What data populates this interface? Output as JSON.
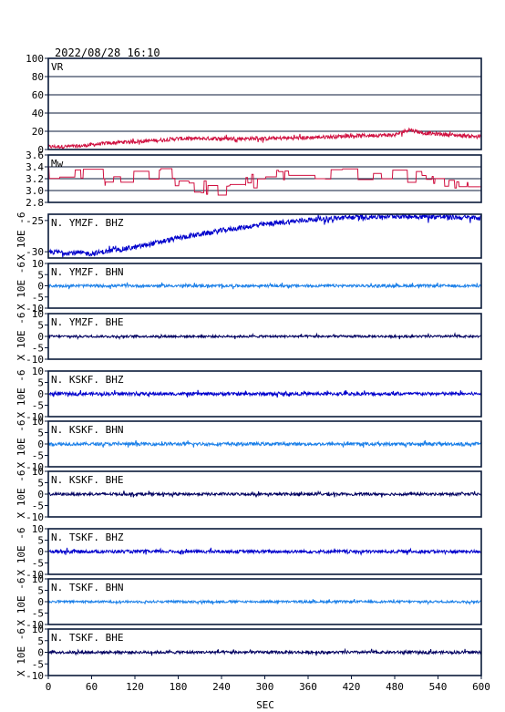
{
  "title": "2022/08/28 16:10",
  "colors": {
    "vr": "#d01040",
    "mw": "#d01040",
    "bhz": "#0000cc",
    "bhn": "#1a7fe8",
    "bhe": "#000060",
    "frame": "#0a1a3a"
  },
  "chart_data": {
    "type": "line",
    "xlabel": "SEC",
    "xlim": [
      0,
      600
    ],
    "xticks": [
      "0",
      "60",
      "120",
      "180",
      "240",
      "300",
      "360",
      "420",
      "480",
      "540",
      "600"
    ],
    "panels": [
      {
        "label": "VR",
        "ylim": [
          0,
          100
        ],
        "yticks": [
          "0",
          "20",
          "40",
          "60",
          "80",
          "100"
        ],
        "grid": true,
        "color_key": "vr",
        "baseline_points": [
          [
            0,
            3
          ],
          [
            40,
            3.5
          ],
          [
            70,
            6
          ],
          [
            100,
            8
          ],
          [
            150,
            10
          ],
          [
            180,
            12
          ],
          [
            240,
            12
          ],
          [
            300,
            12
          ],
          [
            360,
            13
          ],
          [
            420,
            15
          ],
          [
            480,
            16
          ],
          [
            500,
            22
          ],
          [
            520,
            18
          ],
          [
            600,
            14
          ]
        ],
        "noise": 2
      },
      {
        "label": "Mw",
        "ylim": [
          2.8,
          3.6
        ],
        "yticks": [
          "2.8",
          "3.0",
          "3.2",
          "3.4",
          "3.6"
        ],
        "grid": true,
        "color_key": "mw",
        "baseline_points": [
          [
            0,
            3.3
          ],
          [
            40,
            3.35
          ],
          [
            80,
            3.15
          ],
          [
            120,
            3.3
          ],
          [
            160,
            3.25
          ],
          [
            200,
            3.1
          ],
          [
            240,
            2.98
          ],
          [
            280,
            3.15
          ],
          [
            320,
            3.25
          ],
          [
            360,
            3.1
          ],
          [
            400,
            3.3
          ],
          [
            440,
            3.2
          ],
          [
            480,
            3.25
          ],
          [
            520,
            3.2
          ],
          [
            560,
            3.1
          ],
          [
            600,
            3.2
          ]
        ],
        "noise": 0.12,
        "stepped": true
      },
      {
        "label": "N. YMZF. BHZ",
        "ylim": [
          -31,
          -24
        ],
        "yticks": [
          "-30",
          "-25"
        ],
        "ylabel": "X 10E -6",
        "color_key": "bhz",
        "baseline_points": [
          [
            0,
            -30
          ],
          [
            60,
            -30.3
          ],
          [
            120,
            -29.3
          ],
          [
            180,
            -27.8
          ],
          [
            240,
            -26.6
          ],
          [
            300,
            -25.6
          ],
          [
            360,
            -24.9
          ],
          [
            420,
            -24.5
          ],
          [
            480,
            -24.3
          ],
          [
            540,
            -24.4
          ],
          [
            600,
            -24.6
          ]
        ],
        "noise": 0.4
      },
      {
        "label": "N. YMZF. BHN",
        "ylim": [
          -10,
          10
        ],
        "yticks": [
          "-10",
          "-5",
          "0",
          "5",
          "10"
        ],
        "ylabel": "X 10E -6",
        "color_key": "bhn",
        "baseline_points": [
          [
            0,
            0
          ],
          [
            600,
            0
          ]
        ],
        "noise": 0.6
      },
      {
        "label": "N. YMZF. BHE",
        "ylim": [
          -10,
          10
        ],
        "yticks": [
          "-10",
          "-5",
          "0",
          "5",
          "10"
        ],
        "ylabel": "X 10E -6",
        "color_key": "bhe",
        "baseline_points": [
          [
            0,
            0
          ],
          [
            600,
            0
          ]
        ],
        "noise": 0.5
      },
      {
        "label": "N. KSKF. BHZ",
        "ylim": [
          -10,
          10
        ],
        "yticks": [
          "-10",
          "-5",
          "0",
          "5",
          "10"
        ],
        "ylabel": "X 10E -6",
        "color_key": "bhz",
        "baseline_points": [
          [
            0,
            0
          ],
          [
            600,
            0
          ]
        ],
        "noise": 0.7
      },
      {
        "label": "N. KSKF. BHN",
        "ylim": [
          -10,
          10
        ],
        "yticks": [
          "-10",
          "-5",
          "0",
          "5",
          "10"
        ],
        "ylabel": "X 10E -6",
        "color_key": "bhn",
        "baseline_points": [
          [
            0,
            0
          ],
          [
            600,
            0
          ]
        ],
        "noise": 0.7
      },
      {
        "label": "N. KSKF. BHE",
        "ylim": [
          -10,
          10
        ],
        "yticks": [
          "-10",
          "-5",
          "0",
          "5",
          "10"
        ],
        "ylabel": "X 10E -6",
        "color_key": "bhe",
        "baseline_points": [
          [
            0,
            0
          ],
          [
            600,
            0
          ]
        ],
        "noise": 0.6
      },
      {
        "label": "N. TSKF. BHZ",
        "ylim": [
          -10,
          10
        ],
        "yticks": [
          "-10",
          "-5",
          "0",
          "5",
          "10"
        ],
        "ylabel": "X 10E -6",
        "color_key": "bhz",
        "baseline_points": [
          [
            0,
            0
          ],
          [
            600,
            0
          ]
        ],
        "noise": 0.7
      },
      {
        "label": "N. TSKF. BHN",
        "ylim": [
          -10,
          10
        ],
        "yticks": [
          "-10",
          "-5",
          "0",
          "5",
          "10"
        ],
        "ylabel": "X 10E -6",
        "color_key": "bhn",
        "baseline_points": [
          [
            0,
            0
          ],
          [
            600,
            0
          ]
        ],
        "noise": 0.5
      },
      {
        "label": "N. TSKF. BHE",
        "ylim": [
          -10,
          10
        ],
        "yticks": [
          "-10",
          "-5",
          "0",
          "5",
          "10"
        ],
        "ylabel": "X 10E -6",
        "color_key": "bhe",
        "baseline_points": [
          [
            0,
            0
          ],
          [
            600,
            0
          ]
        ],
        "noise": 0.6
      }
    ]
  }
}
